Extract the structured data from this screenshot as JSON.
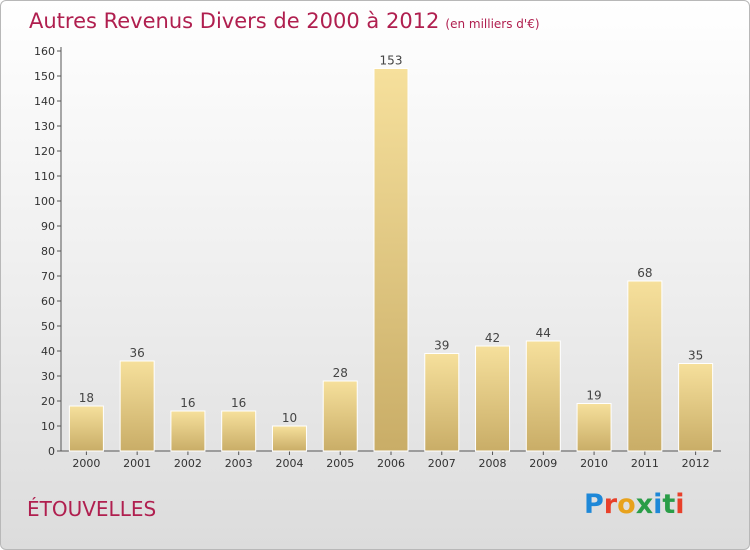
{
  "header": {
    "title": "Autres Revenus Divers de 2000 à 2012",
    "subtitle": "(en milliers d'€)"
  },
  "footer": {
    "place": "ÉTOUVELLES",
    "brand": "Proxiti"
  },
  "colors": {
    "title": "#b01f4f",
    "bar_light": "#f6e09c",
    "bar_dark": "#c9ad67",
    "logo": [
      "#1e88d8",
      "#e8402a",
      "#e8a21c",
      "#2a9d48",
      "#1e88d8",
      "#2a9d48",
      "#e8402a"
    ]
  },
  "chart_data": {
    "type": "bar",
    "title": "Autres Revenus Divers de 2000 à 2012",
    "subtitle": "(en milliers d'€)",
    "categories": [
      "2000",
      "2001",
      "2002",
      "2003",
      "2004",
      "2005",
      "2006",
      "2007",
      "2008",
      "2009",
      "2010",
      "2011",
      "2012"
    ],
    "values": [
      18,
      36,
      16,
      16,
      10,
      28,
      153,
      39,
      42,
      44,
      19,
      68,
      35
    ],
    "ylim": [
      0,
      160
    ],
    "yticks": [
      0,
      10,
      20,
      30,
      40,
      50,
      60,
      70,
      80,
      90,
      100,
      110,
      120,
      130,
      140,
      150,
      160
    ],
    "xlabel": "",
    "ylabel": "",
    "grid": false,
    "data_labels": true
  }
}
